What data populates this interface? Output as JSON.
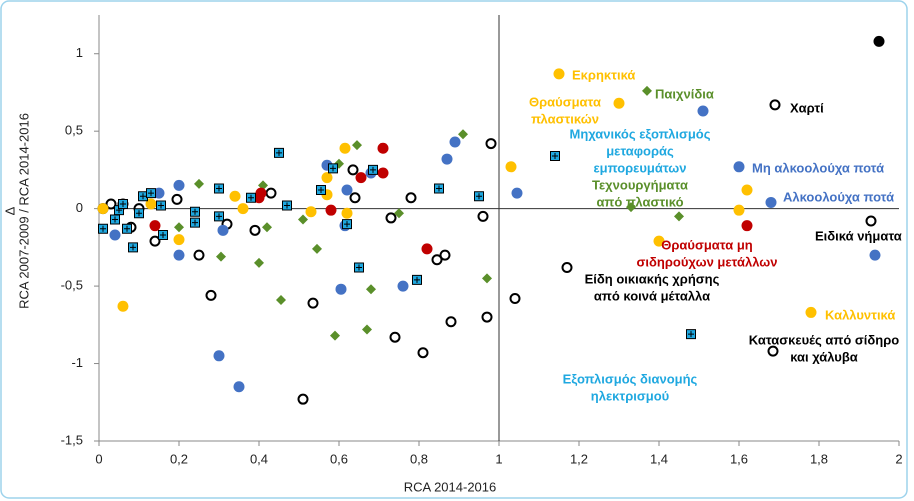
{
  "chart_data": {
    "type": "scatter",
    "xlabel": "RCA 2014-2016",
    "ylabel": [
      "Δ",
      "RCA 2007-2009 / RCA 2014-2016"
    ],
    "xlim": [
      0,
      2
    ],
    "ylim": [
      -1.5,
      1.25
    ],
    "xticks": [
      0,
      {
        "value": 0.2,
        "label": "0,2"
      },
      {
        "value": 0.4,
        "label": "0,4"
      },
      {
        "value": 0.6,
        "label": "0,6"
      },
      {
        "value": 0.8,
        "label": "0,8"
      },
      1,
      {
        "value": 1.2,
        "label": "1,2"
      },
      {
        "value": 1.4,
        "label": "1,4"
      },
      {
        "value": 1.6,
        "label": "1,6"
      },
      {
        "value": 1.8,
        "label": "1,8"
      },
      2
    ],
    "yticks": [
      {
        "value": -1.5,
        "label": "-1,5"
      },
      -1,
      {
        "value": -0.5,
        "label": "-0,5"
      },
      0,
      {
        "value": 0.5,
        "label": "0,5"
      },
      1
    ],
    "grid": false,
    "series": [
      {
        "color": "#000000",
        "marker": "circle-open",
        "x": [
          1.69,
          1.93,
          1.685,
          1.17,
          1.04,
          0.97,
          0.88,
          0.98,
          0.96,
          0.865,
          0.845,
          0.81,
          0.74,
          0.73,
          0.78,
          0.635,
          0.64,
          0.535,
          0.51,
          0.43,
          0.39,
          0.32,
          0.25,
          0.28,
          0.14,
          0.195,
          0.01,
          0.03,
          0.1,
          0.06,
          0.08
        ],
        "values": [
          0.67,
          -0.08,
          -0.92,
          -0.38,
          -0.58,
          -0.7,
          -0.73,
          0.42,
          -0.05,
          -0.3,
          -0.33,
          -0.93,
          -0.83,
          -0.06,
          0.07,
          0.25,
          0.07,
          -0.61,
          -1.23,
          0.1,
          -0.14,
          -0.1,
          -0.3,
          -0.56,
          -0.21,
          0.06,
          0.0,
          0.03,
          0.0,
          0.03,
          -0.12
        ]
      },
      {
        "color": "#000000",
        "marker": "circle",
        "x": [
          1.95
        ],
        "values": [
          1.08
        ]
      },
      {
        "color": "#FFC000",
        "marker": "circle",
        "x": [
          1.15,
          1.3,
          1.03,
          1.62,
          1.6,
          1.4,
          1.78,
          0.06,
          0.615,
          0.57,
          0.57,
          0.53,
          0.62,
          0.2,
          0.34,
          0.36,
          0.13,
          0.01
        ],
        "values": [
          0.87,
          0.68,
          0.27,
          0.12,
          -0.01,
          -0.21,
          -0.67,
          -0.63,
          0.39,
          0.2,
          0.09,
          -0.02,
          -0.03,
          -0.2,
          0.08,
          0.0,
          0.03,
          0.0
        ]
      },
      {
        "color": "#5A8F2A",
        "marker": "diamond",
        "x": [
          1.37,
          0.91,
          0.645,
          0.6,
          1.33,
          1.45,
          0.97,
          0.59,
          0.67,
          0.455,
          0.4,
          0.545,
          0.68,
          0.25,
          0.41,
          0.51,
          0.305,
          0.2,
          0.42,
          0.75
        ],
        "values": [
          0.76,
          0.48,
          0.41,
          0.29,
          0.01,
          -0.05,
          -0.45,
          -0.82,
          -0.78,
          -0.59,
          -0.35,
          -0.26,
          -0.52,
          0.16,
          0.15,
          -0.07,
          -0.31,
          -0.12,
          -0.12,
          -0.03
        ]
      },
      {
        "color": "#4472C4",
        "marker": "circle",
        "x": [
          1.51,
          1.6,
          1.68,
          1.94,
          0.89,
          0.87,
          1.045,
          0.57,
          0.62,
          0.615,
          0.605,
          0.76,
          0.3,
          0.35,
          0.2,
          0.2,
          0.15,
          0.04,
          0.31,
          0.68
        ],
        "values": [
          0.63,
          0.27,
          0.04,
          -0.3,
          0.43,
          0.32,
          0.1,
          0.28,
          0.12,
          -0.11,
          -0.52,
          -0.5,
          -0.95,
          -1.15,
          0.15,
          -0.3,
          0.1,
          -0.17,
          -0.14,
          0.23
        ]
      },
      {
        "color": "#C00000",
        "marker": "circle",
        "x": [
          0.71,
          0.71,
          0.655,
          0.58,
          0.82,
          1.62,
          0.4,
          0.14,
          0.405
        ],
        "values": [
          0.39,
          0.23,
          0.2,
          -0.01,
          -0.26,
          -0.11,
          0.07,
          -0.11,
          0.1
        ]
      },
      {
        "color": "#1FA8E0",
        "marker": "square-plus",
        "x": [
          1.14,
          1.48,
          0.95,
          0.85,
          0.795,
          0.65,
          0.62,
          0.555,
          0.585,
          0.685,
          0.45,
          0.47,
          0.38,
          0.3,
          0.3,
          0.24,
          0.24,
          0.155,
          0.16,
          0.11,
          0.085,
          0.05,
          0.04,
          0.01,
          0.07,
          0.06,
          0.1,
          0.13
        ],
        "values": [
          0.34,
          -0.81,
          0.08,
          0.13,
          -0.46,
          -0.38,
          -0.1,
          0.12,
          0.26,
          0.25,
          0.36,
          0.02,
          0.07,
          0.13,
          -0.05,
          -0.02,
          -0.09,
          0.02,
          -0.17,
          0.08,
          -0.25,
          -0.01,
          -0.07,
          -0.13,
          -0.13,
          0.03,
          -0.03,
          0.1
        ]
      }
    ],
    "annotations": [
      {
        "lines": [
          "Εκρηκτικά"
        ],
        "color": "#FFC000"
      },
      {
        "lines": [
          "Θραύσματα",
          "πλαστικών"
        ],
        "color": "#FFC000"
      },
      {
        "lines": [
          "Παιχνίδια"
        ],
        "color": "#5A8F2A"
      },
      {
        "lines": [
          "Χαρτί"
        ],
        "color": "#000000"
      },
      {
        "lines": [
          "Μηχανικός εξοπλισμός",
          "μεταφοράς",
          "εμπορευμάτων"
        ],
        "color": "#1FA8E0"
      },
      {
        "lines": [
          "Μη αλκοολούχα ποτά"
        ],
        "color": "#4472C4"
      },
      {
        "lines": [
          "Αλκοολούχα ποτά"
        ],
        "color": "#4472C4"
      },
      {
        "lines": [
          "Τεχνουργήματα",
          "από πλαστικό"
        ],
        "color": "#5A8F2A"
      },
      {
        "lines": [
          "Ειδικά νήματα"
        ],
        "color": "#000000"
      },
      {
        "lines": [
          "Θραύσματα μη",
          "σιδηρούχων μετάλλων"
        ],
        "color": "#C00000"
      },
      {
        "lines": [
          "Είδη οικιακής χρήσης",
          "από κοινά μέταλλα"
        ],
        "color": "#000000"
      },
      {
        "lines": [
          "Καλλυντικά"
        ],
        "color": "#FFC000"
      },
      {
        "lines": [
          "Κατασκευές από σίδηρο",
          "και χάλυβα"
        ],
        "color": "#000000"
      },
      {
        "lines": [
          "Εξοπλισμός διανομής",
          "ηλεκτρισμού"
        ],
        "color": "#1FA8E0"
      }
    ]
  }
}
